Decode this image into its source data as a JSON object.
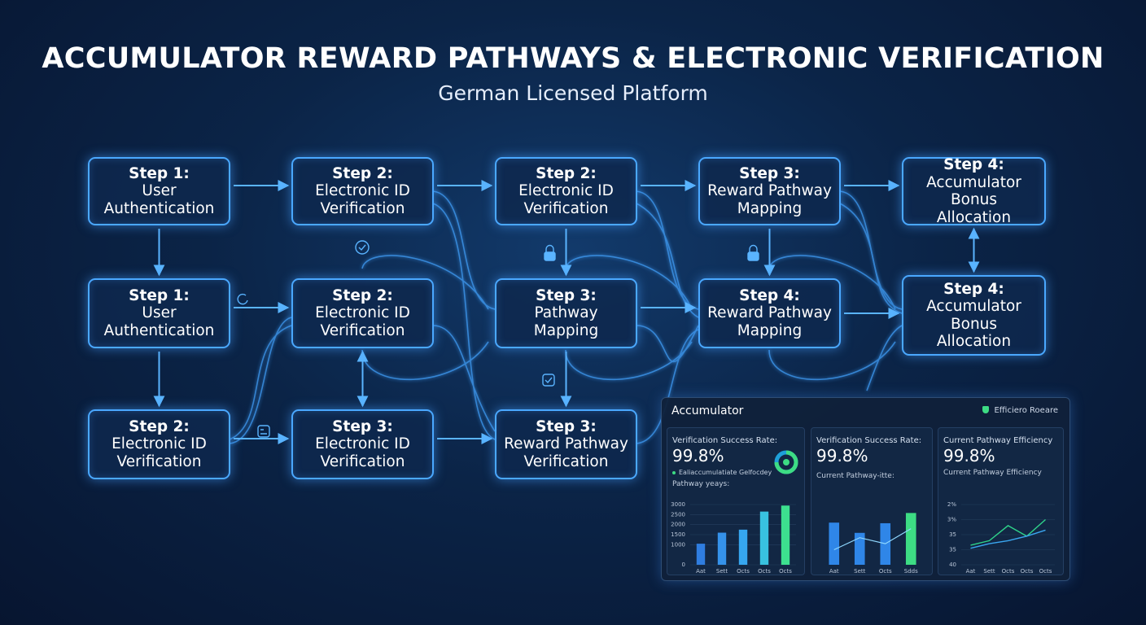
{
  "header": {
    "title": "ACCUMULATOR REWARD PATHWAYS & ELECTRONIC VERIFICATION",
    "subtitle": "German Licensed Platform"
  },
  "nodes": [
    {
      "step": "Step 1:",
      "lines": [
        "User",
        "Authentication"
      ]
    },
    {
      "step": "Step 2:",
      "lines": [
        "Electronic ID",
        "Verification"
      ]
    },
    {
      "step": "Step 2:",
      "lines": [
        "Electronic ID",
        "Verification"
      ]
    },
    {
      "step": "Step 3:",
      "lines": [
        "Reward Pathway",
        "Mapping"
      ]
    },
    {
      "step": "Step 4:",
      "lines": [
        "Accumulator Bonus",
        "Allocation"
      ]
    },
    {
      "step": "Step 1:",
      "lines": [
        "User",
        "Authentication"
      ]
    },
    {
      "step": "Step 2:",
      "lines": [
        "Electronic ID",
        "Verification"
      ]
    },
    {
      "step": "Step 3:",
      "lines": [
        "Pathway",
        "Mapping"
      ]
    },
    {
      "step": "Step 4:",
      "lines": [
        "Reward Pathway",
        "Mapping"
      ]
    },
    {
      "step": "Step 4:",
      "lines": [
        "Accumulator",
        "Bonus",
        "Allocation"
      ]
    },
    {
      "step": "Step 2:",
      "lines": [
        "Electronic ID",
        "Verification"
      ]
    },
    {
      "step": "Step 3:",
      "lines": [
        "Electronic ID",
        "Verification"
      ]
    },
    {
      "step": "Step 3:",
      "lines": [
        "Reward Pathway",
        "Verification"
      ]
    }
  ],
  "dashboard": {
    "title": "Accumulator",
    "badge": "Efficiero Roeare",
    "cards": [
      {
        "label": "Verification Success Rate:",
        "value": "99.8%",
        "legend": "Ealiaccumulatiate Gelfocdey",
        "caption": "Pathway yeays:",
        "chart": {
          "type": "bar",
          "categories": [
            "Aat",
            "Sett",
            "Octs",
            "Octs",
            "Octs"
          ],
          "values": [
            1050,
            1600,
            1750,
            2650,
            2950
          ],
          "colors": [
            "#2f7de0",
            "#3592ea",
            "#36a6ef",
            "#38c2e0",
            "#3de08f"
          ],
          "ylim": [
            0,
            3000
          ],
          "yticks": [
            0,
            1000,
            1500,
            2000,
            2500,
            3000
          ]
        }
      },
      {
        "label": "Verification Success Rate:",
        "value": "99.8%",
        "caption": "Current Pathway-itte:",
        "chart": {
          "type": "bar",
          "categories": [
            "Aat",
            "Sett",
            "Octs",
            "Sdds"
          ],
          "values": [
            70,
            53,
            69,
            86
          ],
          "colors": [
            "#2f86e8",
            "#2f86e8",
            "#2f86e8",
            "#3ddc84"
          ],
          "line": {
            "color": "#8fd8ff",
            "values": [
              25,
              45,
              35,
              60
            ]
          },
          "ylim": [
            0,
            100
          ]
        }
      },
      {
        "label": "Current Pathway Efficiency",
        "value": "99.8%",
        "caption": "Current Pathway Efficiency",
        "chart": {
          "type": "line",
          "categories": [
            "Aat",
            "Sett",
            "Octs",
            "Octs",
            "Octs"
          ],
          "series": [
            {
              "color": "#2fd38a",
              "values": [
                1.3,
                1.6,
                2.6,
                1.9,
                3.0
              ]
            },
            {
              "color": "#3aa6f0",
              "values": [
                1.1,
                1.4,
                1.6,
                1.9,
                2.3
              ]
            }
          ],
          "ylim": [
            0,
            4
          ],
          "yticks": [
            {
              "value": 0,
              "label": "40"
            },
            {
              "value": 1,
              "label": "35"
            },
            {
              "value": 2,
              "label": "35"
            },
            {
              "value": 3,
              "label": "3%"
            },
            {
              "value": 4,
              "label": "2%"
            }
          ]
        }
      }
    ]
  }
}
